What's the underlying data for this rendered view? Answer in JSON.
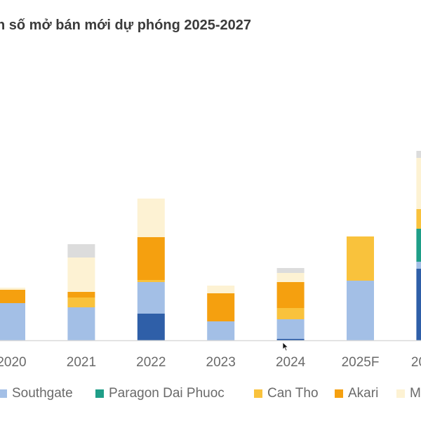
{
  "title": "n số mở bán mới dự phóng 2025-2027",
  "chart_data": {
    "type": "bar",
    "stacked": true,
    "title": "n số mở bán mới dự phóng 2025-2027",
    "xlabel": "",
    "ylabel": "",
    "ylim": [
      0,
      4200
    ],
    "grid": false,
    "legend": "bottom",
    "categories": [
      "2020",
      "2021",
      "2022",
      "2023",
      "2024",
      "2025F",
      "20"
    ],
    "series": [
      {
        "name": "",
        "color": "#2f5fa8",
        "values": [
          0,
          0,
          380,
          0,
          20,
          0,
          1020
        ]
      },
      {
        "name": "Southgate",
        "color": "#a3bfe6",
        "values": [
          530,
          470,
          450,
          270,
          280,
          850,
          100
        ]
      },
      {
        "name": "Paragon Dai Phuoc",
        "color": "#1f9e88",
        "values": [
          0,
          0,
          0,
          0,
          0,
          0,
          470
        ]
      },
      {
        "name": "Can Tho",
        "color": "#f9c23c",
        "values": [
          0,
          140,
          30,
          0,
          160,
          630,
          280
        ]
      },
      {
        "name": "Akari",
        "color": "#f5a00f",
        "values": [
          190,
          80,
          610,
          400,
          370,
          0,
          0
        ]
      },
      {
        "name": "M",
        "color": "#fdf2d3",
        "values": [
          30,
          490,
          550,
          110,
          130,
          0,
          730
        ]
      },
      {
        "name": "",
        "color": "#dcdcdc",
        "values": [
          0,
          190,
          0,
          0,
          70,
          0,
          100
        ]
      }
    ]
  }
}
